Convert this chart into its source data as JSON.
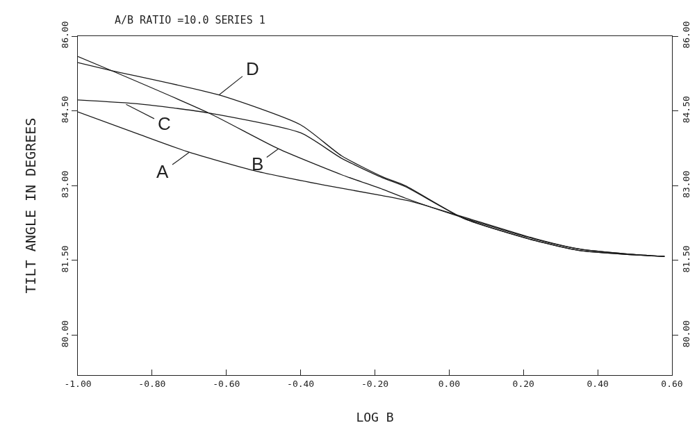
{
  "chart_data": {
    "type": "line",
    "title": "A/B RATIO =10.0 SERIES 1",
    "xlabel": "LOG B",
    "ylabel": "TILT ANGLE IN DEGREES",
    "xlim": [
      -1,
      0.6
    ],
    "xticks": [
      {
        "value": -1,
        "label": "-1.00"
      },
      {
        "value": -0.8,
        "label": "-0.80"
      },
      {
        "value": -0.6,
        "label": "-0.60"
      },
      {
        "value": -0.4,
        "label": "-0.40"
      },
      {
        "value": -0.2,
        "label": "-0.20"
      },
      {
        "value": 0,
        "label": "0.00"
      },
      {
        "value": 0.2,
        "label": "0.20"
      },
      {
        "value": 0.4,
        "label": "0.40"
      },
      {
        "value": 0.6,
        "label": "0.60"
      }
    ],
    "ylim": [
      79.2,
      86
    ],
    "yticks": [
      {
        "value": 80,
        "label": "80.00"
      },
      {
        "value": 81.5,
        "label": "81.50"
      },
      {
        "value": 83,
        "label": "83.00"
      },
      {
        "value": 84.5,
        "label": "84.50"
      },
      {
        "value": 86,
        "label": "86.00"
      }
    ],
    "y2lim": [
      79.2,
      86
    ],
    "y2ticks": [
      {
        "value": 80,
        "label": "80.00"
      },
      {
        "value": 81.5,
        "label": "81.50"
      },
      {
        "value": 83,
        "label": "83.00"
      },
      {
        "value": 84.5,
        "label": "84.50"
      },
      {
        "value": 86,
        "label": "86.00"
      }
    ],
    "grid": false,
    "marker": "none",
    "line_style": "solid",
    "series": [
      {
        "color": "#1a1a1a",
        "x": [
          -1,
          -0.835,
          -0.7,
          -0.52,
          -0.335,
          -0.18,
          -0.1,
          0.04,
          0.23,
          0.35,
          0.48,
          0.58
        ],
        "values": [
          84.48,
          84.03,
          83.67,
          83.29,
          83.01,
          82.8,
          82.68,
          82.37,
          81.94,
          81.73,
          81.63,
          81.58
        ]
      },
      {
        "color": "#1a1a1a",
        "x": [
          -1,
          -0.91,
          -0.648,
          -0.46,
          -0.29,
          -0.18,
          -0.118,
          0.04,
          0.23,
          0.35,
          0.48,
          0.58
        ],
        "values": [
          85.59,
          85.31,
          84.46,
          83.74,
          83.22,
          82.93,
          82.75,
          82.35,
          81.93,
          81.73,
          81.63,
          81.58
        ]
      },
      {
        "color": "#1a1a1a",
        "x": [
          -1,
          -0.835,
          -0.648,
          -0.4,
          -0.29,
          -0.18,
          -0.118,
          0.04,
          0.23,
          0.35,
          0.48,
          0.58
        ],
        "values": [
          84.72,
          84.64,
          84.46,
          84.06,
          83.55,
          83.16,
          82.98,
          82.34,
          81.9,
          81.7,
          81.62,
          81.58
        ]
      },
      {
        "color": "#1a1a1a",
        "x": [
          -1,
          -0.91,
          -0.62,
          -0.4,
          -0.29,
          -0.18,
          -0.118,
          0.04,
          0.23,
          0.35,
          0.48,
          0.58
        ],
        "values": [
          85.47,
          85.31,
          84.82,
          84.22,
          83.6,
          83.18,
          83.0,
          82.34,
          81.9,
          81.7,
          81.62,
          81.58
        ]
      }
    ],
    "annotations": [
      {
        "text": "A",
        "x": -0.7,
        "y": 83.67
      },
      {
        "text": "B",
        "x": -0.46,
        "y": 83.74
      },
      {
        "text": "C",
        "x": -0.87,
        "y": 84.63
      },
      {
        "text": "D",
        "x": -0.62,
        "y": 84.82
      }
    ]
  }
}
